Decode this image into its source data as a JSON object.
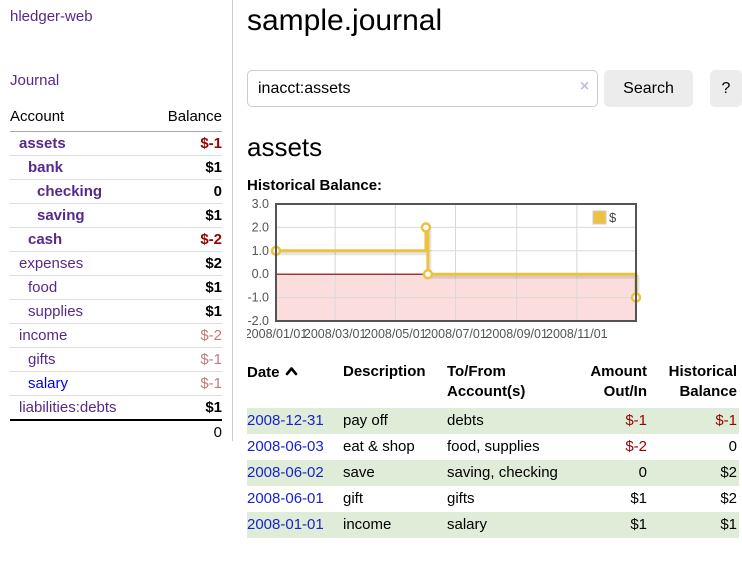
{
  "app": {
    "brand": "hledger-web",
    "nav": {
      "journal": "Journal"
    }
  },
  "sidebar": {
    "headers": {
      "account": "Account",
      "balance": "Balance"
    },
    "accounts": [
      {
        "name": "assets",
        "depth": 1,
        "bold": true,
        "balance": "$-1",
        "balance_class": "neg b"
      },
      {
        "name": "bank",
        "depth": 2,
        "bold": true,
        "balance": "$1",
        "balance_class": "pos b"
      },
      {
        "name": "checking",
        "depth": 3,
        "bold": true,
        "balance": "0",
        "balance_class": "pos b"
      },
      {
        "name": "saving",
        "depth": 3,
        "bold": true,
        "balance": "$1",
        "balance_class": "pos b"
      },
      {
        "name": "cash",
        "depth": 2,
        "bold": true,
        "balance": "$-2",
        "balance_class": "neg b"
      },
      {
        "name": "expenses",
        "depth": 1,
        "bold": false,
        "balance": "$2",
        "balance_class": "pos b"
      },
      {
        "name": "food",
        "depth": 2,
        "bold": false,
        "balance": "$1",
        "balance_class": "pos b"
      },
      {
        "name": "supplies",
        "depth": 2,
        "bold": false,
        "balance": "$1",
        "balance_class": "pos b"
      },
      {
        "name": "income",
        "depth": 1,
        "bold": false,
        "balance": "$-2",
        "balance_class": "dim"
      },
      {
        "name": "gifts",
        "depth": 2,
        "bold": false,
        "balance": "$-1",
        "balance_class": "dim"
      },
      {
        "name": "salary",
        "depth": 2,
        "bold": false,
        "link": "blue",
        "balance": "$-1",
        "balance_class": "dim"
      },
      {
        "name": "liabilities:debts",
        "depth": 1,
        "bold": false,
        "balance": "$1",
        "balance_class": "pos b"
      }
    ],
    "total": "0"
  },
  "main": {
    "title": "sample.journal",
    "search": {
      "value": "inacct:assets",
      "clear_icon": "×",
      "button_label": "Search",
      "help_label": "?"
    },
    "account_heading": "assets",
    "chart_label": "Historical Balance:"
  },
  "chart_data": {
    "type": "line",
    "title": "Historical Balance:",
    "series": [
      {
        "name": "$",
        "color": "#edc240",
        "step": true,
        "points": [
          {
            "date": "2008-01-01",
            "value": 1
          },
          {
            "date": "2008-06-01",
            "value": 2
          },
          {
            "date": "2008-06-03",
            "value": 0
          },
          {
            "date": "2008-12-31",
            "value": -1
          }
        ]
      }
    ],
    "legend": [
      {
        "label": "$",
        "color": "#edc240"
      }
    ],
    "legend_position": "top-right",
    "x_range": [
      "2008-01-01",
      "2008-12-31"
    ],
    "y_range": [
      -2,
      3
    ],
    "y_ticks": [
      "3.0",
      "2.0",
      "1.0",
      "0.0",
      "-1.0",
      "-2.0"
    ],
    "x_ticks": [
      "2008/01/01",
      "2008/03/01",
      "2008/05/01",
      "2008/07/01",
      "2008/09/01",
      "2008/11/01"
    ],
    "grid": true,
    "negative_fill": "#fbdddd",
    "zero_line_color": "#8b0000",
    "border_color": "#545454",
    "grid_color": "#d8d8d8",
    "tick_color": "#545454"
  },
  "register": {
    "headers": {
      "date": "Date",
      "description": "Description",
      "accounts": "To/From Account(s)",
      "amount": "Amount Out/In",
      "balance": "Historical Balance"
    },
    "sort": {
      "column": "date",
      "direction": "asc"
    },
    "rows": [
      {
        "date": "2008-12-31",
        "description": "pay off",
        "accounts": "debts",
        "amount": "$-1",
        "amount_negative": true,
        "balance": "$-1",
        "balance_negative": true
      },
      {
        "date": "2008-06-03",
        "description": "eat & shop",
        "accounts": "food, supplies",
        "amount": "$-2",
        "amount_negative": true,
        "balance": "0",
        "balance_negative": false
      },
      {
        "date": "2008-06-02",
        "description": "save",
        "accounts": "saving, checking",
        "amount": "0",
        "amount_negative": false,
        "balance": "$2",
        "balance_negative": false
      },
      {
        "date": "2008-06-01",
        "description": "gift",
        "accounts": "gifts",
        "amount": "$1",
        "amount_negative": false,
        "balance": "$2",
        "balance_negative": false
      },
      {
        "date": "2008-01-01",
        "description": "income",
        "accounts": "salary",
        "amount": "$1",
        "amount_negative": false,
        "balance": "$1",
        "balance_negative": false
      }
    ]
  }
}
